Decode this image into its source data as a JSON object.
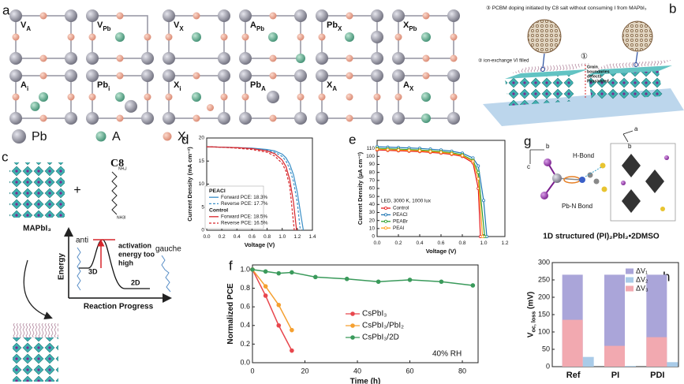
{
  "figure": {
    "panel_labels": [
      "a",
      "b",
      "c",
      "d",
      "e",
      "f",
      "g",
      "h"
    ],
    "a": {
      "top": [
        {
          "main": "V",
          "sub": "A"
        },
        {
          "main": "V",
          "sub": "Pb"
        },
        {
          "main": "V",
          "sub": "X"
        },
        {
          "main": "A",
          "sub": "Pb"
        },
        {
          "main": "Pb",
          "sub": "X"
        },
        {
          "main": "X",
          "sub": "Pb"
        }
      ],
      "bottom": [
        {
          "main": "A",
          "sub": "i"
        },
        {
          "main": "Pb",
          "sub": "i"
        },
        {
          "main": "X",
          "sub": "i"
        },
        {
          "main": "Pb",
          "sub": "A"
        },
        {
          "main": "X",
          "sub": "A"
        },
        {
          "main": "A",
          "sub": "X"
        }
      ],
      "legend": [
        "Pb",
        "A",
        "X"
      ]
    },
    "b": {
      "step3": "③ PCBM doping initiated by C8 salt without consuming I from MAPbI₃",
      "step2": "② ion-exchange VI filled",
      "step1": "①",
      "note": [
        "Grain",
        "boundaries",
        "defects",
        "Passivated"
      ]
    },
    "c": {
      "molecule": "C8",
      "plus": "+",
      "amine_top": "NH₃I",
      "amine_bottom": "NH3I",
      "perovskite": "MAPbI₃",
      "anti": "anti",
      "gauche": "gauche",
      "energy": "Energy",
      "progress": "Reaction Progress",
      "phase_3d": "3D",
      "phase_2d": "2D",
      "barrier": [
        "activation",
        "energy too",
        "high"
      ]
    },
    "g": {
      "axes": [
        "b",
        "c",
        "a",
        "b"
      ],
      "hbond": "H-Bond",
      "pbn": "Pb-N Bond",
      "caption": "1D structured (PI)₂PbI₂•2DMSO"
    }
  },
  "chart_data": [
    {
      "type": "line",
      "xlabel": "Voltage (V)",
      "ylabel": "Current Density (mA cm⁻²)",
      "xlim": [
        0,
        1.4
      ],
      "ylim": [
        0,
        20
      ],
      "xticks": [
        {
          "value": 0,
          "label": "0.0"
        },
        0.2,
        0.4,
        0.6,
        0.8,
        {
          "value": 1,
          "label": "1.0"
        },
        1.2,
        1.4
      ],
      "yticks": [
        0,
        5,
        10,
        15,
        20
      ],
      "legend_titles": [
        {
          "text": "PEACl",
          "color": "#1f78c8"
        },
        {
          "text": "Control",
          "color": "#d7262b"
        }
      ],
      "series": [
        {
          "name": "Forward PCE: 18.3%",
          "color": "#3a8fc7",
          "dashed": false,
          "x": [
            0,
            0.2,
            0.4,
            0.6,
            0.8,
            0.9,
            1.0,
            1.05,
            1.1,
            1.15,
            1.2,
            1.25,
            1.28
          ],
          "values": [
            18.1,
            18,
            17.9,
            17.8,
            17.5,
            17.2,
            16.5,
            15.7,
            14.3,
            12,
            8.2,
            3,
            0
          ]
        },
        {
          "name": "Reverse PCE: 17.7%",
          "color": "#3a8fc7",
          "dashed": true,
          "x": [
            0,
            0.2,
            0.4,
            0.6,
            0.8,
            0.9,
            1.0,
            1.05,
            1.1,
            1.15,
            1.2,
            1.24
          ],
          "values": [
            18.1,
            18,
            17.9,
            17.7,
            17.3,
            16.9,
            16,
            15,
            13.3,
            10.5,
            6,
            0
          ]
        },
        {
          "name": "Forward PCE: 18.5%",
          "color": "#d7262b",
          "dashed": false,
          "x": [
            0,
            0.2,
            0.4,
            0.6,
            0.8,
            0.9,
            1.0,
            1.05,
            1.1,
            1.15,
            1.19
          ],
          "values": [
            18.1,
            18,
            17.9,
            17.7,
            17.2,
            16.6,
            15.2,
            13.8,
            11,
            6,
            0
          ]
        },
        {
          "name": "Reverse PCE: 16.5%",
          "color": "#d7262b",
          "dashed": true,
          "x": [
            0,
            0.2,
            0.4,
            0.6,
            0.8,
            0.9,
            1.0,
            1.05,
            1.1,
            1.16
          ],
          "values": [
            18.1,
            18,
            17.8,
            17.5,
            16.9,
            16.1,
            14.5,
            12.8,
            9.5,
            0
          ]
        }
      ]
    },
    {
      "type": "line",
      "xlabel": "Voltage (V)",
      "ylabel": "Current Density (µA cm⁻²)",
      "xlim": [
        0,
        1.2
      ],
      "ylim": [
        0,
        120
      ],
      "xticks": [
        {
          "value": 0,
          "label": "0.0"
        },
        0.2,
        0.4,
        0.6,
        0.8,
        {
          "value": 1,
          "label": "1.0"
        },
        1.2
      ],
      "yticks": [
        0,
        10,
        20,
        30,
        40,
        50,
        60,
        70,
        80,
        90,
        100,
        110
      ],
      "legend_note": "LED, 3000 K, 1000 lux",
      "series": [
        {
          "name": "Control",
          "color": "#e41a1c",
          "marker": true,
          "x": [
            0,
            0.1,
            0.2,
            0.3,
            0.4,
            0.5,
            0.6,
            0.7,
            0.8,
            0.9,
            0.95,
            0.97
          ],
          "values": [
            108,
            107.5,
            107,
            106.5,
            106,
            105,
            104,
            102.5,
            100,
            92,
            60,
            0
          ]
        },
        {
          "name": "PEACl",
          "color": "#1f77b4",
          "marker": true,
          "x": [
            0,
            0.1,
            0.2,
            0.3,
            0.4,
            0.5,
            0.6,
            0.7,
            0.8,
            0.9,
            0.95,
            1.0,
            1.03
          ],
          "values": [
            112,
            111.5,
            111,
            110.5,
            110,
            109,
            108,
            106.5,
            104,
            98,
            88,
            45,
            0
          ]
        },
        {
          "name": "PEABr",
          "color": "#2ca02c",
          "marker": true,
          "x": [
            0,
            0.1,
            0.2,
            0.3,
            0.4,
            0.5,
            0.6,
            0.7,
            0.8,
            0.9,
            0.95,
            1.01
          ],
          "values": [
            110,
            109.5,
            109,
            108.5,
            108,
            107,
            106,
            104.5,
            102,
            95,
            80,
            0
          ]
        },
        {
          "name": "PEAI",
          "color": "#ff9f1c",
          "marker": true,
          "x": [
            0,
            0.1,
            0.2,
            0.3,
            0.4,
            0.5,
            0.6,
            0.7,
            0.8,
            0.9,
            0.95,
            0.99
          ],
          "values": [
            109,
            108.5,
            108,
            107.5,
            107,
            106,
            105,
            103.5,
            101,
            94,
            72,
            0
          ]
        }
      ]
    },
    {
      "type": "line",
      "xlabel": "Time (h)",
      "ylabel": "Normalized PCE",
      "xlim": [
        0,
        86
      ],
      "ylim": [
        0,
        1.05
      ],
      "xticks": [
        0,
        20,
        40,
        60,
        80
      ],
      "yticks": [
        {
          "value": 0,
          "label": "0.0"
        },
        0.2,
        0.4,
        0.6,
        0.8,
        {
          "value": 1,
          "label": "1.0"
        }
      ],
      "annotation": "40% RH",
      "series": [
        {
          "name": "CsPbI₃",
          "color": "#e8474d",
          "marker": true,
          "x": [
            0,
            5,
            10,
            15
          ],
          "values": [
            1,
            0.72,
            0.4,
            0.13
          ]
        },
        {
          "name": "CsPbI₃/PbI₂",
          "color": "#f5a030",
          "marker": true,
          "x": [
            0,
            5,
            10,
            15
          ],
          "values": [
            1,
            0.82,
            0.62,
            0.35
          ]
        },
        {
          "name": "CsPbI₃/2D",
          "color": "#3a9a5b",
          "marker": true,
          "x": [
            0,
            5,
            10,
            15,
            24,
            36,
            48,
            60,
            72,
            84
          ],
          "values": [
            1,
            0.98,
            0.96,
            0.97,
            0.92,
            0.9,
            0.87,
            0.89,
            0.87,
            0.83
          ]
        }
      ]
    },
    {
      "type": "bar",
      "categories": [
        "Ref",
        "PI",
        "PDI"
      ],
      "ylabel": {
        "main": "V",
        "sub": "oc, loss",
        "rest": " (mV)"
      },
      "ylim": [
        0,
        300
      ],
      "yticks": [
        0,
        50,
        100,
        150,
        200,
        250,
        300
      ],
      "series": [
        {
          "name": "ΔV₁",
          "color": "#aaa5d9",
          "values": [
            265,
            265,
            265
          ]
        },
        {
          "name": "ΔV₂",
          "color": "#a9cbe8",
          "values": [
            28,
            2,
            13
          ]
        },
        {
          "name": "ΔV₃",
          "color": "#f2a9b0",
          "values": [
            135,
            60,
            85
          ]
        }
      ]
    }
  ]
}
